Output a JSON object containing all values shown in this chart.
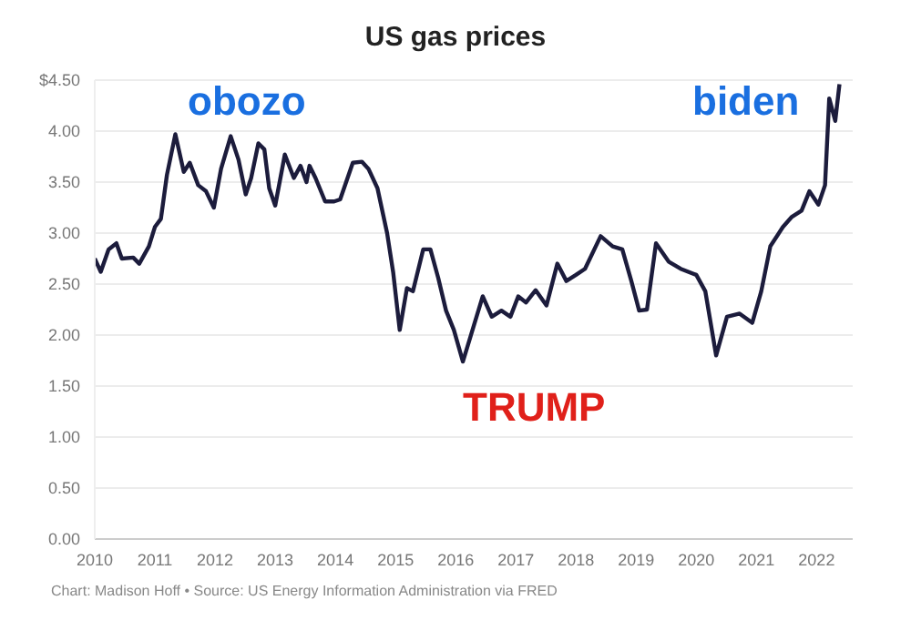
{
  "chart_data": {
    "type": "line",
    "title": "US gas prices",
    "x": [
      2010.0,
      2010.1,
      2010.23,
      2010.36,
      2010.45,
      2010.64,
      2010.74,
      2010.9,
      2011.0,
      2011.1,
      2011.2,
      2011.34,
      2011.48,
      2011.58,
      2011.72,
      2011.85,
      2011.98,
      2012.1,
      2012.26,
      2012.39,
      2012.51,
      2012.6,
      2012.72,
      2012.82,
      2012.9,
      2013.0,
      2013.16,
      2013.31,
      2013.42,
      2013.52,
      2013.57,
      2013.67,
      2013.83,
      2013.98,
      2014.08,
      2014.29,
      2014.44,
      2014.55,
      2014.7,
      2014.86,
      2014.96,
      2015.07,
      2015.19,
      2015.29,
      2015.46,
      2015.58,
      2015.71,
      2015.84,
      2015.97,
      2016.12,
      2016.45,
      2016.6,
      2016.76,
      2016.91,
      2017.04,
      2017.17,
      2017.33,
      2017.51,
      2017.69,
      2017.84,
      2018.0,
      2018.15,
      2018.41,
      2018.61,
      2018.77,
      2018.92,
      2019.05,
      2019.18,
      2019.33,
      2019.54,
      2019.74,
      2020.0,
      2020.15,
      2020.33,
      2020.51,
      2020.72,
      2020.93,
      2021.08,
      2021.23,
      2021.44,
      2021.59,
      2021.75,
      2021.88,
      2022.03,
      2022.14,
      2022.21,
      2022.31,
      2022.38
    ],
    "series": [
      {
        "color": "#1c1c3c",
        "values": [
          2.75,
          2.62,
          2.84,
          2.9,
          2.75,
          2.76,
          2.7,
          2.87,
          3.06,
          3.14,
          3.57,
          3.97,
          3.6,
          3.69,
          3.47,
          3.41,
          3.25,
          3.63,
          3.95,
          3.72,
          3.38,
          3.54,
          3.88,
          3.82,
          3.44,
          3.27,
          3.77,
          3.54,
          3.66,
          3.5,
          3.66,
          3.54,
          3.31,
          3.31,
          3.33,
          3.69,
          3.7,
          3.63,
          3.44,
          3.0,
          2.62,
          2.05,
          2.46,
          2.43,
          2.84,
          2.84,
          2.56,
          2.24,
          2.05,
          1.74,
          2.38,
          2.18,
          2.24,
          2.18,
          2.38,
          2.32,
          2.44,
          2.29,
          2.7,
          2.53,
          2.59,
          2.65,
          2.97,
          2.87,
          2.84,
          2.53,
          2.24,
          2.25,
          2.9,
          2.72,
          2.65,
          2.59,
          2.43,
          1.8,
          2.18,
          2.21,
          2.12,
          2.43,
          2.87,
          3.06,
          3.16,
          3.22,
          3.41,
          3.28,
          3.47,
          4.32,
          4.1,
          4.46
        ]
      }
    ],
    "xlim": [
      2010,
      2022.6
    ],
    "xticks": [
      2010,
      2011,
      2012,
      2013,
      2014,
      2015,
      2016,
      2017,
      2018,
      2019,
      2020,
      2021,
      2022
    ],
    "ylim": [
      0,
      4.5
    ],
    "yticks": [
      {
        "value": 0,
        "label": "0.00"
      },
      {
        "value": 0.5,
        "label": "0.50"
      },
      {
        "value": 1,
        "label": "1.00"
      },
      {
        "value": 1.5,
        "label": "1.50"
      },
      {
        "value": 2,
        "label": "2.00"
      },
      {
        "value": 2.5,
        "label": "2.50"
      },
      {
        "value": 3,
        "label": "3.00"
      },
      {
        "value": 3.5,
        "label": "3.50"
      },
      {
        "value": 4,
        "label": "4.00"
      },
      {
        "value": 4.5,
        "label": "$4.50"
      }
    ],
    "grid": "y",
    "marker": "none",
    "line_style": "solid",
    "annotations": [
      "obozo",
      "biden",
      "TRUMP",
      "Chart: Madison Hoff • Source: US Energy Information Administration via FRED"
    ]
  }
}
